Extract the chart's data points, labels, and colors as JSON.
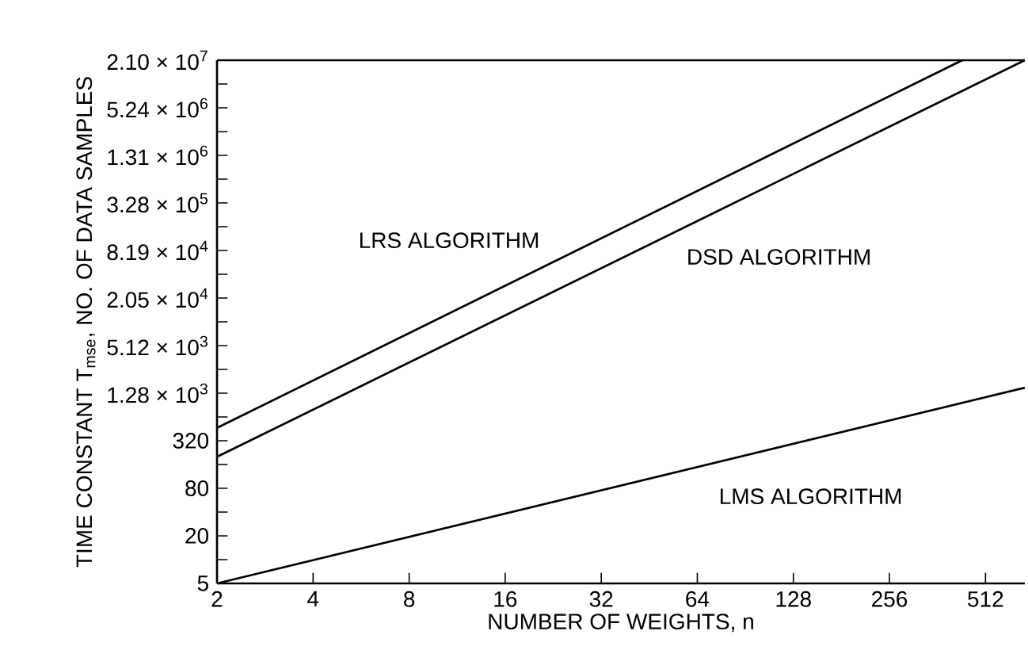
{
  "chart_data": {
    "type": "line",
    "log": "xy",
    "xlabel": "NUMBER OF WEIGHTS, n",
    "ylabel": "TIME CONSTANT T$_{mse}$, NO. OF DATA SAMPLES",
    "xlim": [
      2,
      680
    ],
    "ylim": [
      5,
      20971520
    ],
    "xticks": [
      2,
      4,
      8,
      16,
      32,
      64,
      128,
      256,
      512
    ],
    "yticks": [
      {
        "value": 5,
        "label": "5"
      },
      {
        "value": 10,
        "label": null
      },
      {
        "value": 20,
        "label": "20"
      },
      {
        "value": 40,
        "label": null
      },
      {
        "value": 80,
        "label": "80"
      },
      {
        "value": 160,
        "label": null
      },
      {
        "value": 320,
        "label": "320"
      },
      {
        "value": 640,
        "label": null
      },
      {
        "value": 1280,
        "label": "1.28 × 10$^{3}$"
      },
      {
        "value": 2560,
        "label": null
      },
      {
        "value": 5120,
        "label": "5.12 × 10$^{3}$"
      },
      {
        "value": 10240,
        "label": null
      },
      {
        "value": 20480,
        "label": "2.05 × 10$^{4}$"
      },
      {
        "value": 40960,
        "label": null
      },
      {
        "value": 81920,
        "label": "8.19 × 10$^{4}$"
      },
      {
        "value": 163840,
        "label": null
      },
      {
        "value": 327680,
        "label": "3.28 × 10$^{5}$"
      },
      {
        "value": 655360,
        "label": null
      },
      {
        "value": 1310720,
        "label": "1.31 × 10$^{6}$"
      },
      {
        "value": 2621440,
        "label": null
      },
      {
        "value": 5242880,
        "label": "5.24 × 10$^{6}$"
      },
      {
        "value": 10485760,
        "label": null
      },
      {
        "value": 20971520,
        "label": "2.10 × 10$^{7}$"
      }
    ],
    "series": [
      {
        "name": "LRS ALGORITHM",
        "color": "#000000",
        "x": [
          2,
          433
        ],
        "values": [
          465,
          20971520
        ]
      },
      {
        "name": "DSD ALGORITHM",
        "color": "#000000",
        "x": [
          2,
          680
        ],
        "values": [
          200,
          20971520
        ]
      },
      {
        "name": "LMS ALGORITHM",
        "color": "#000000",
        "x": [
          2,
          680
        ],
        "values": [
          5,
          1500
        ]
      }
    ],
    "legend": false,
    "grid": false
  }
}
